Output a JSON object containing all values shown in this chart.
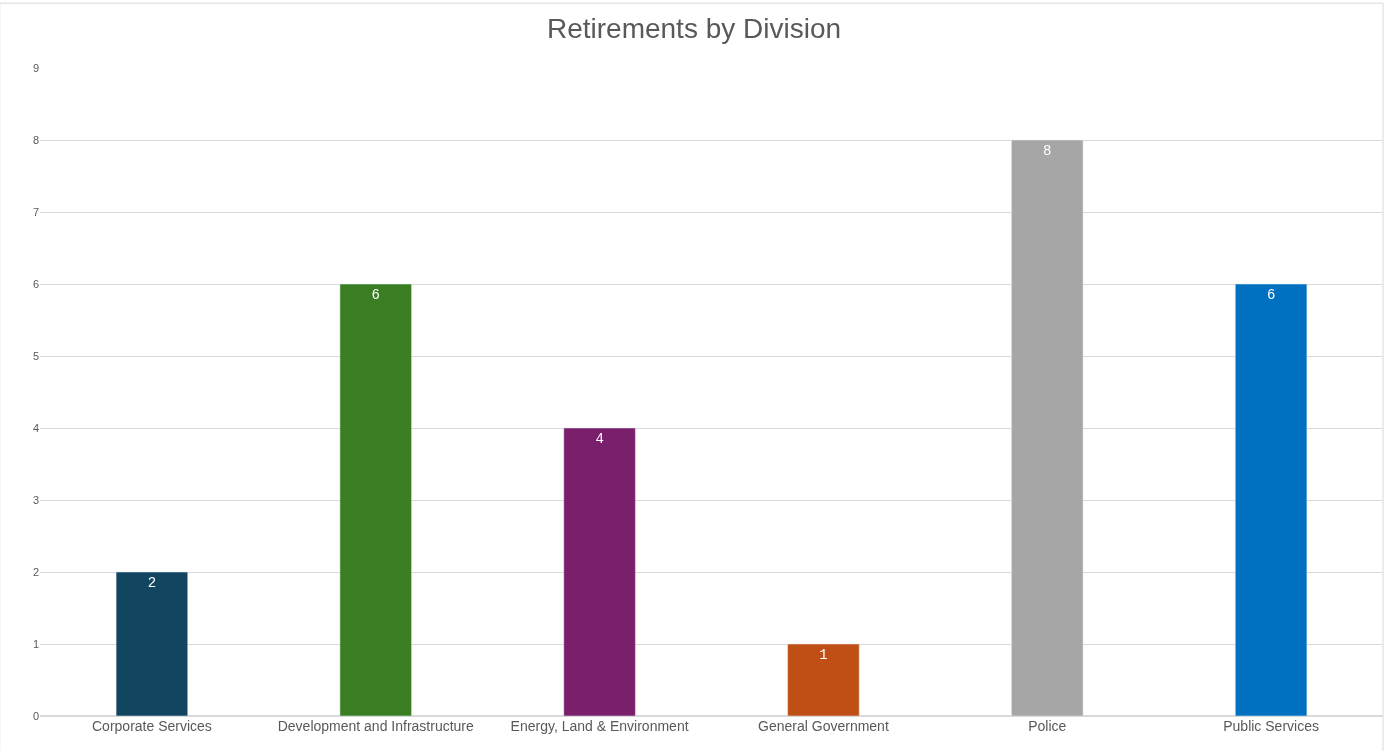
{
  "chart_data": {
    "type": "bar",
    "title": "Retirements by Division",
    "categories": [
      "Corporate Services",
      "Development and Infrastructure",
      "Energy, Land & Environment",
      "General Government",
      "Police",
      "Public Services"
    ],
    "values": [
      2,
      6,
      4,
      1,
      8,
      6
    ],
    "colors": [
      "#124660",
      "#3b7d23",
      "#7a1f6b",
      "#c04f15",
      "#a6a6a6",
      "#0070c0"
    ],
    "ylim": [
      0,
      9
    ],
    "yticks": [
      0,
      1,
      2,
      3,
      4,
      5,
      6,
      7,
      8,
      9
    ],
    "grid": "y",
    "data_labels": true,
    "legend": false
  }
}
